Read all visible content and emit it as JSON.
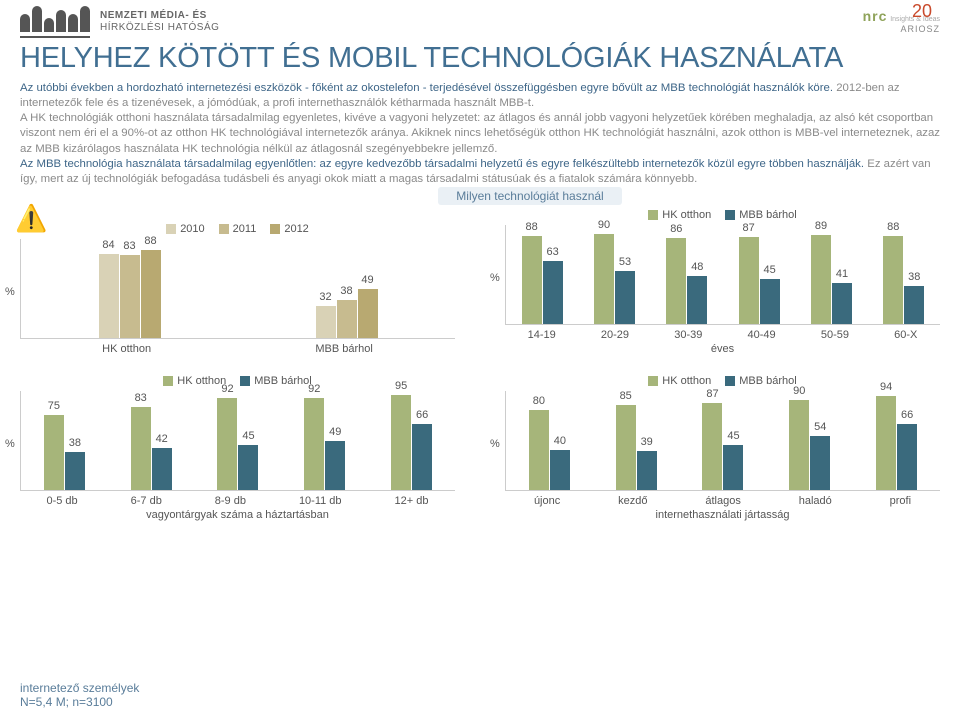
{
  "page_number": "20",
  "logo": {
    "line1": "NEMZETI MÉDIA- ÉS",
    "line2": "HÍRKÖZLÉSI HATÓSÁG"
  },
  "brand1": "nrc",
  "brand1_tag": "Insights & Ideas",
  "brand2": "ARIOSZ",
  "title": "HELYHEZ KÖTÖTT ÉS MOBIL TECHNOLÓGIÁK HASZNÁLATA",
  "p1": "Az utóbbi években a hordozható internetezési eszközök - főként az okostelefon - terjedésével összefüggésben egyre bővült az MBB technológiát használók köre.",
  "p2": "2012-ben az internetezők fele és a tizenévesek, a jómódúak, a profi internethasználók kétharmada használt MBB-t.",
  "p3": "A HK technológiák otthoni használata társadalmilag egyenletes, kivéve a vagyoni helyzetet: az átlagos és annál jobb vagyoni helyzetűek körében meghaladja, az alsó két csoportban viszont nem éri el a 90%-ot az otthon HK technológiával internetezők aránya. Akiknek nincs lehetőségük otthon HK technológiát használni, azok otthon is MBB-vel interneteznek, azaz az MBB kizárólagos használata HK technológia nélkül az átlagosnál szegényebbekre jellemző.",
  "p4": "Az MBB technológia használata társadalmilag egyenlőtlen: az egyre kedvezőbb társadalmi helyzetű és egyre felkészültebb internetezők közül egyre többen használják.",
  "p5": "Ez azért van így, mert az új technológiák befogadása tudásbeli és anyagi okok miatt a magas társadalmi státusúak és a fiatalok számára könnyebb.",
  "chart_title": "Milyen technológiát használ",
  "colors": {
    "y2010": "#d9d2b6",
    "y2011": "#c7bb8f",
    "y2012": "#b8a971",
    "hk": "#a6b57a",
    "mbb": "#3a6a7d",
    "warn": "#e6a817"
  },
  "axis": {
    "ylabel": "%",
    "ymax": 100
  },
  "chartA": {
    "legend": [
      "2010",
      "2011",
      "2012"
    ],
    "cats": [
      "HK otthon",
      "MBB bárhol"
    ],
    "series": [
      [
        84,
        83,
        88
      ],
      [
        32,
        38,
        49
      ]
    ],
    "colors": [
      "#d9d2b6",
      "#c7bb8f",
      "#b8a971"
    ],
    "warning_group": 1
  },
  "chartB": {
    "legend": [
      "HK otthon",
      "MBB bárhol"
    ],
    "cats": [
      "14-19",
      "20-29",
      "30-39",
      "40-49",
      "50-59",
      "60-X"
    ],
    "sub": "éves",
    "series": [
      [
        88,
        63
      ],
      [
        90,
        53
      ],
      [
        86,
        48
      ],
      [
        87,
        45
      ],
      [
        89,
        41
      ],
      [
        88,
        38
      ]
    ],
    "colors": [
      "#a6b57a",
      "#3a6a7d"
    ]
  },
  "chartC": {
    "legend": [
      "HK otthon",
      "MBB bárhol"
    ],
    "cats": [
      "0-5 db",
      "6-7 db",
      "8-9 db",
      "10-11 db",
      "12+ db"
    ],
    "sub": "vagyontárgyak száma a háztartásban",
    "series": [
      [
        75,
        38
      ],
      [
        83,
        42
      ],
      [
        92,
        45
      ],
      [
        92,
        49
      ],
      [
        95,
        66
      ]
    ],
    "colors": [
      "#a6b57a",
      "#3a6a7d"
    ]
  },
  "chartD": {
    "legend": [
      "HK otthon",
      "MBB bárhol"
    ],
    "cats": [
      "újonc",
      "kezdő",
      "átlagos",
      "haladó",
      "profi"
    ],
    "sub": "internethasználati jártasság",
    "series": [
      [
        80,
        40
      ],
      [
        85,
        39
      ],
      [
        87,
        45
      ],
      [
        90,
        54
      ],
      [
        94,
        66
      ]
    ],
    "colors": [
      "#a6b57a",
      "#3a6a7d"
    ]
  },
  "footer1": "internetező személyek",
  "footer2": "N=5,4 M; n=3100"
}
